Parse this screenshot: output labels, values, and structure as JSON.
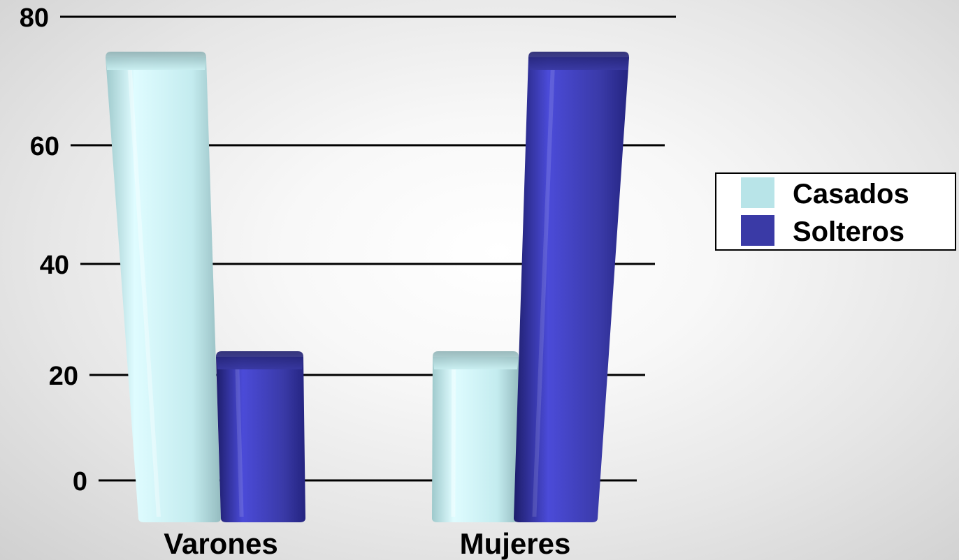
{
  "chart_data": {
    "type": "bar",
    "categories": [
      "Varones",
      "Mujeres"
    ],
    "series": [
      {
        "name": "Casados",
        "values": [
          80,
          20
        ],
        "color": "#b8e4e8"
      },
      {
        "name": "Solteros",
        "values": [
          20,
          80
        ],
        "color": "#3a3aa6"
      }
    ],
    "ylim": [
      0,
      80
    ],
    "yticks": [
      "0",
      "20",
      "40",
      "60",
      "80"
    ],
    "grid": true,
    "legend_position": "right"
  }
}
